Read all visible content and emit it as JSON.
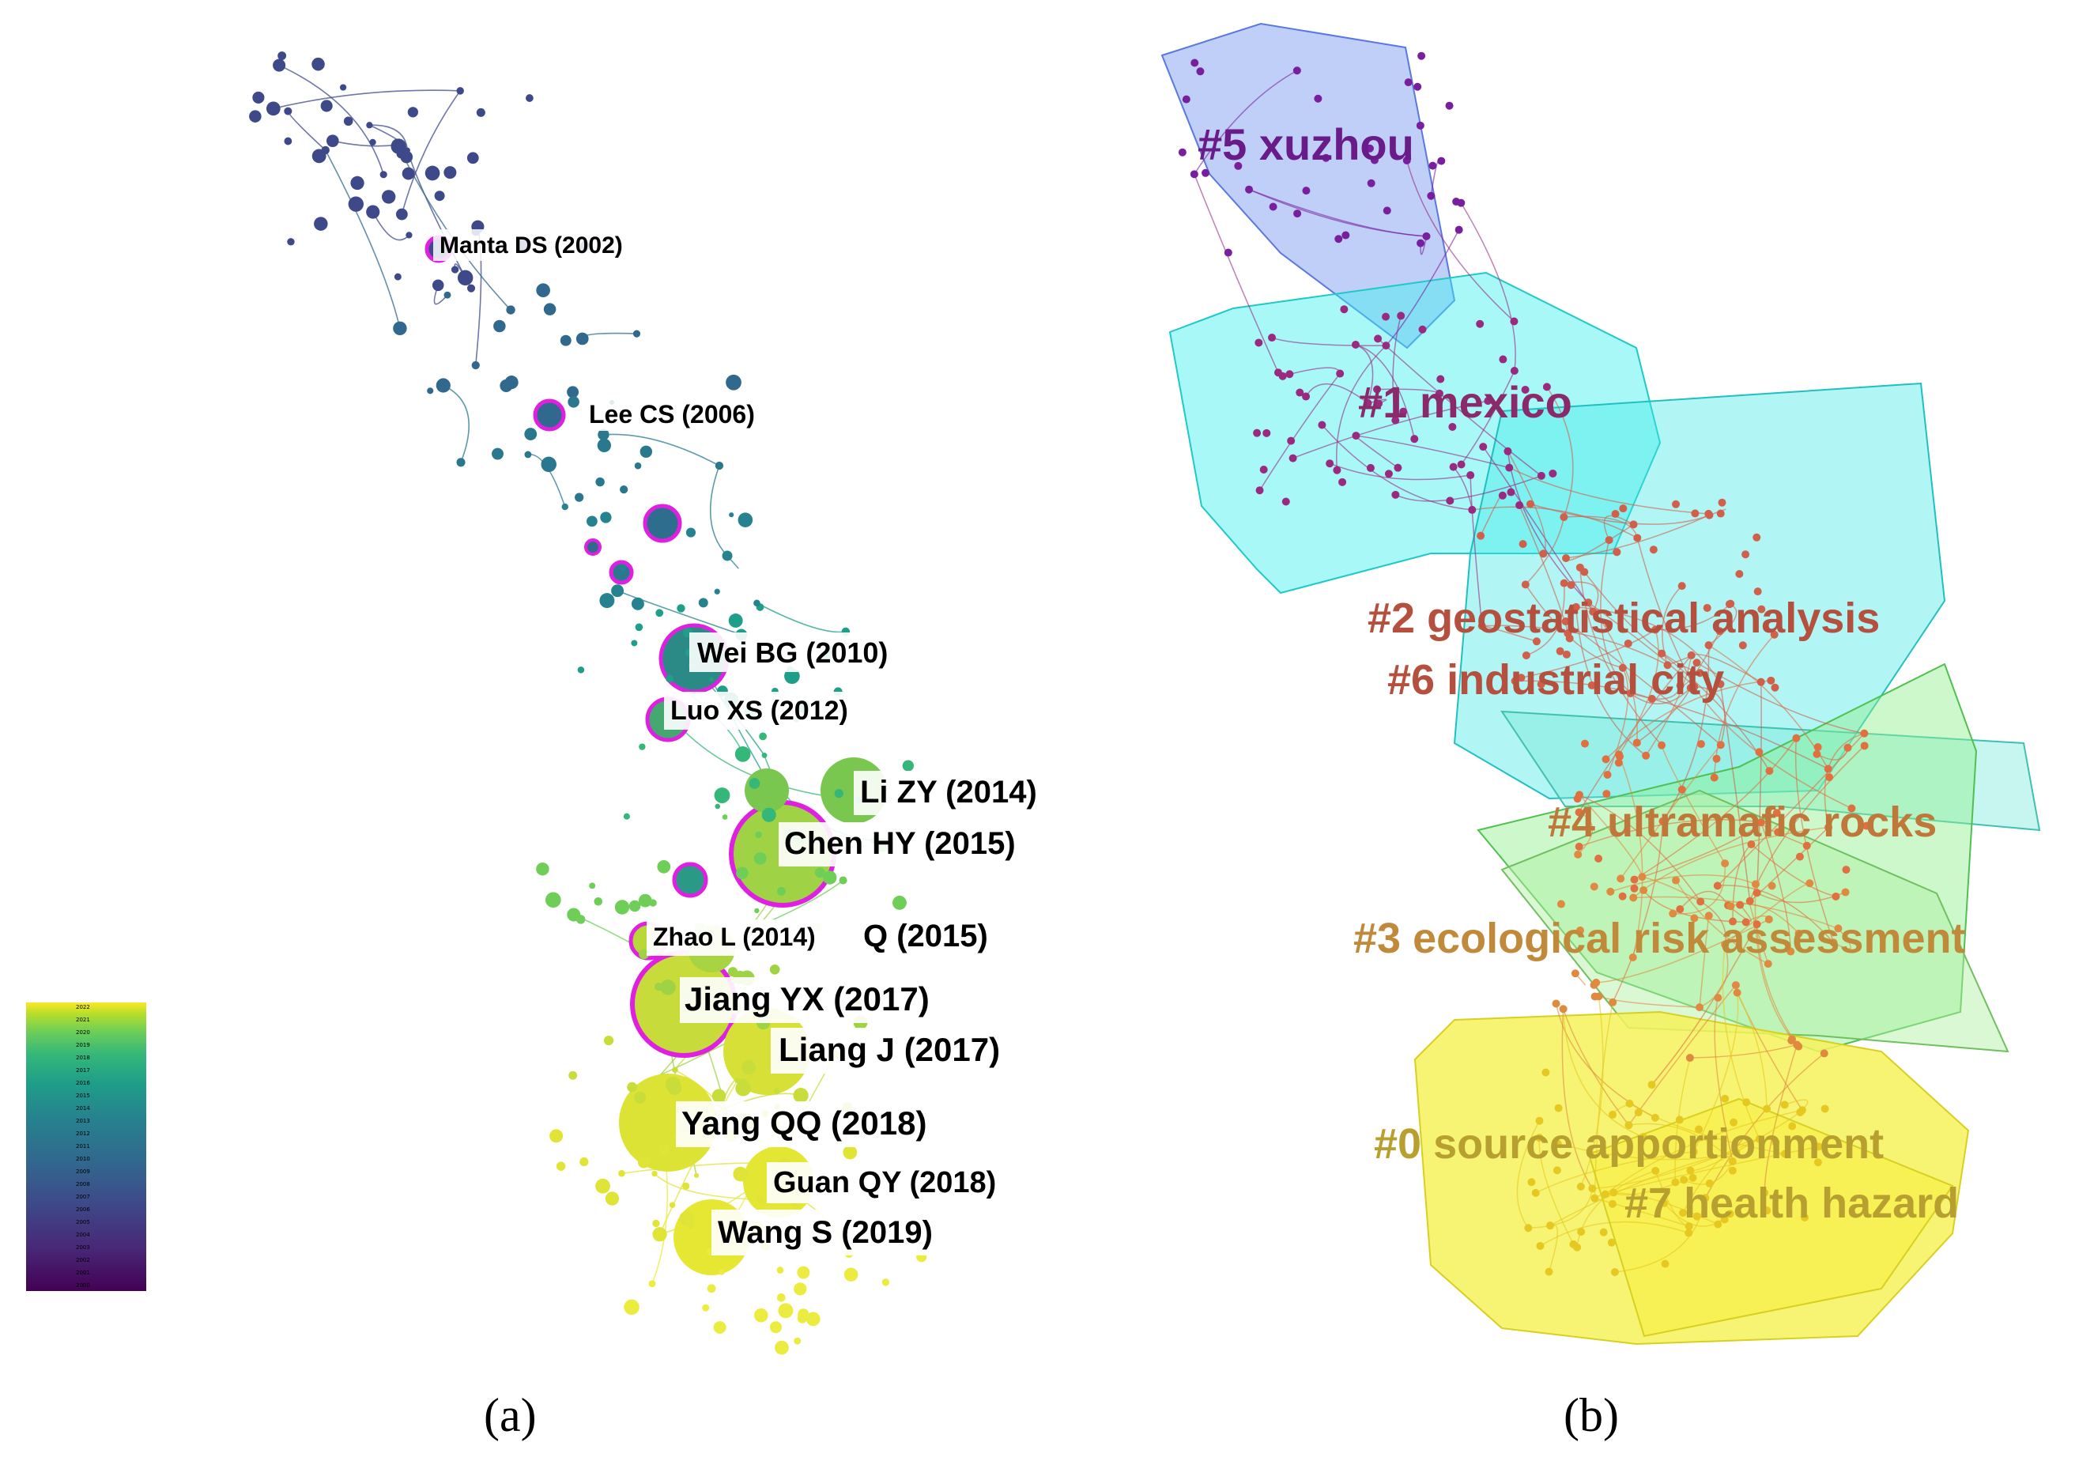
{
  "panel_a": {
    "caption": "(a)",
    "citation_labels": [
      {
        "name": "Manta DS (2002)"
      },
      {
        "name": "Lee CS (2006)"
      },
      {
        "name": "Wei BG (2010)"
      },
      {
        "name": "Luo XS (2012)"
      },
      {
        "name": "Li ZY (2014)"
      },
      {
        "name": "Chen HY (2015)"
      },
      {
        "name": "Q (2015)"
      },
      {
        "name": "Zhao L (2014)"
      },
      {
        "name": "Jiang YX (2017)"
      },
      {
        "name": "Liang J (2017)"
      },
      {
        "name": "Yang QQ (2018)"
      },
      {
        "name": "Guan QY (2018)"
      },
      {
        "name": "Wang S (2019)"
      }
    ],
    "year_legend": [
      "2022",
      "2021",
      "2020",
      "2019",
      "2018",
      "2017",
      "2016",
      "2015",
      "2014",
      "2013",
      "2012",
      "2011",
      "2010",
      "2009",
      "2008",
      "2007",
      "2006",
      "2005",
      "2004",
      "2003",
      "2002",
      "2001",
      "2000"
    ]
  },
  "panel_b": {
    "caption": "(b)",
    "clusters": [
      {
        "label": "#5 xuzhou",
        "color": "#6a1b8a"
      },
      {
        "label": "#1 mexico",
        "color": "#8a2a6a"
      },
      {
        "label": "#2 geostatistical analysis",
        "color": "#b5503f"
      },
      {
        "label": "#6 industrial city",
        "color": "#b5503f"
      },
      {
        "label": "#4 ultramafic rocks",
        "color": "#c0783a"
      },
      {
        "label": "#3 ecological risk assessment",
        "color": "#c08a3a"
      },
      {
        "label": "#0 source apportionment",
        "color": "#b8a030"
      },
      {
        "label": "#7 health hazard",
        "color": "#b8a030"
      }
    ]
  }
}
